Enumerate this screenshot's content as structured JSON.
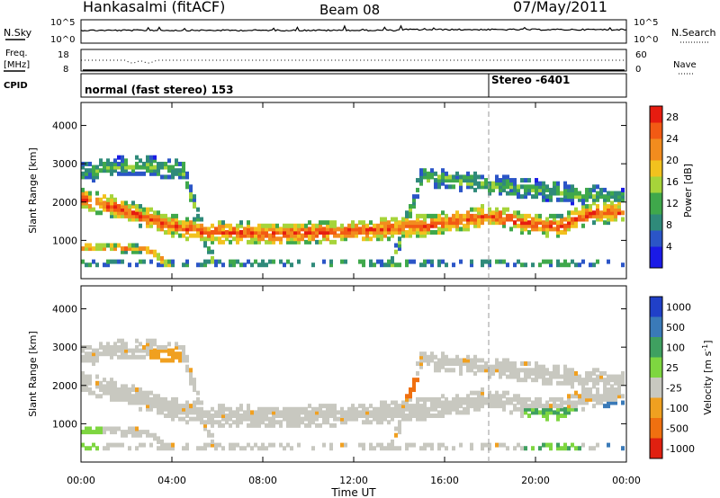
{
  "header": {
    "station": "Hankasalmi (fitACF)",
    "beam": "Beam 08",
    "date": "07/May/2011"
  },
  "noise_panel": {
    "left_label": "N.Sky",
    "right_label": "N.Search",
    "ticks": [
      "10^5",
      "10^0"
    ]
  },
  "freq_panel": {
    "left_label_1": "Freq.",
    "left_label_2": "[MHz]",
    "left_ticks": [
      "18",
      "8"
    ],
    "right_label": "Nave",
    "right_ticks": [
      "60",
      "0"
    ]
  },
  "cpid_panel": {
    "label": "CPID",
    "mode_1": "normal (fast stereo) 153",
    "mode_2": "Stereo -6401",
    "mode_2_time_hours": 18.0
  },
  "chart_data": [
    {
      "type": "heatmap",
      "title": "",
      "xlabel": "Time UT",
      "ylabel": "Slant Range [km]",
      "xlim": [
        0,
        24
      ],
      "ylim": [
        0,
        4600
      ],
      "x_ticks": [
        "00:00",
        "04:00",
        "08:00",
        "12:00",
        "16:00",
        "20:00",
        "00:00"
      ],
      "y_ticks": [
        1000,
        2000,
        3000,
        4000
      ],
      "colorbar": {
        "label": "Power [dB]",
        "ticks": [
          4,
          8,
          12,
          16,
          20,
          24,
          28
        ],
        "range": [
          0,
          30
        ],
        "colors": [
          "#1a1ae6",
          "#2b55c7",
          "#2f8a7a",
          "#3fa84b",
          "#a6d43a",
          "#f2c21e",
          "#f28c1e",
          "#f25a14",
          "#e61c10"
        ]
      },
      "bands": [
        {
          "name": "main",
          "center_km": [
            2050,
            1800,
            1500,
            1250,
            1150,
            1130,
            1120,
            1140,
            1180,
            1250,
            1320,
            1450,
            1600,
            1400,
            1300,
            1650,
            1700
          ],
          "width_km": 550,
          "peak_db": 26
        },
        {
          "name": "upper",
          "center_km": [
            2700,
            2850,
            2900,
            2750,
            0,
            0,
            0,
            0,
            0,
            0,
            2600,
            2500,
            2400,
            2300,
            2200,
            2100,
            2050
          ],
          "width_km": 500,
          "peak_db": 12
        },
        {
          "name": "low",
          "center_km": [
            750,
            750,
            700,
            0,
            0,
            0,
            0,
            0,
            0,
            0,
            0,
            0,
            0,
            0,
            0,
            0,
            0
          ],
          "width_km": 200,
          "peak_db": 22
        }
      ]
    },
    {
      "type": "heatmap",
      "title": "",
      "xlabel": "Time UT",
      "ylabel": "Slant Range [km]",
      "xlim": [
        0,
        24
      ],
      "ylim": [
        0,
        4600
      ],
      "x_ticks": [
        "00:00",
        "04:00",
        "08:00",
        "12:00",
        "16:00",
        "20:00",
        "00:00"
      ],
      "y_ticks": [
        1000,
        2000,
        3000,
        4000
      ],
      "colorbar": {
        "label": "Velocity [m s^-1]",
        "ticks": [
          1000,
          500,
          100,
          25,
          -25,
          -100,
          -500,
          -1000
        ],
        "colors": [
          "#2040c8",
          "#3a7ab8",
          "#3fa060",
          "#7ed640",
          "#c8c8c0",
          "#f0a020",
          "#f07010",
          "#e02010"
        ]
      },
      "dominant_value": "ground scatter (grey)"
    }
  ]
}
